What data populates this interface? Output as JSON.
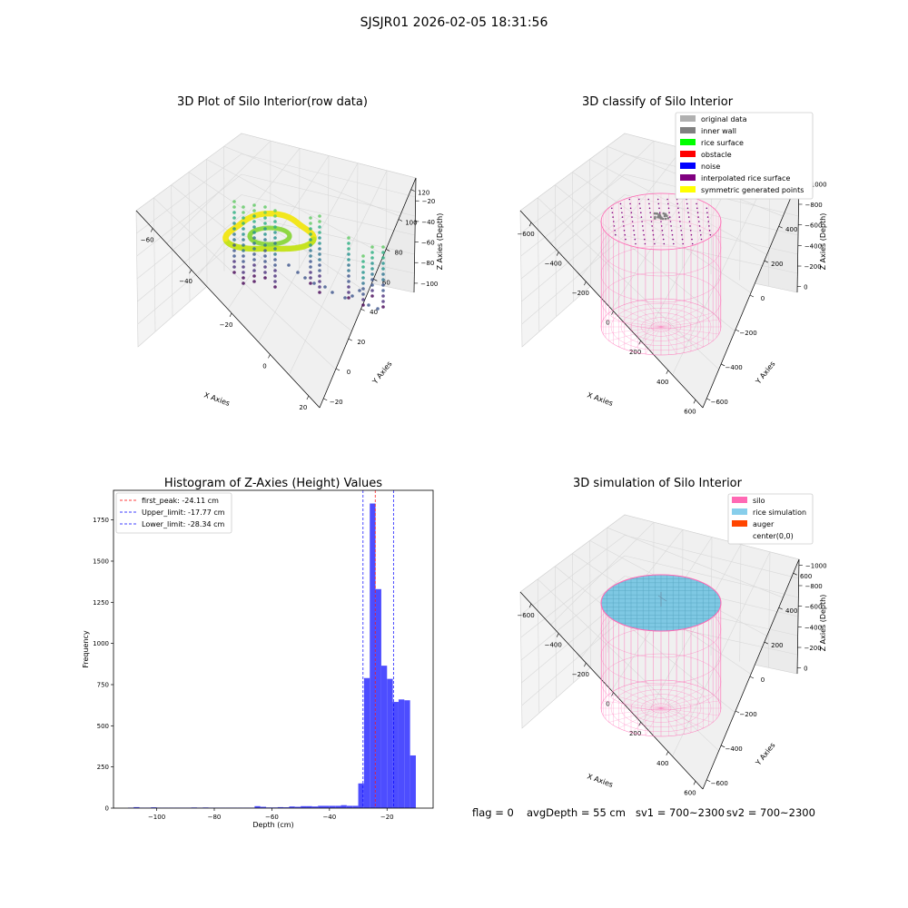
{
  "figure": {
    "suptitle": "SJSJR01 2026-02-05 18:31:56"
  },
  "status": {
    "flag": "flag = 0",
    "avg_depth": "avgDepth = 55 cm",
    "sv1": "sv1 = 700~2300",
    "sv2": "sv2 = 700~2300"
  },
  "chart_data": [
    {
      "type": "scatter",
      "title": "3D Plot of Silo Interior(row data)",
      "xlabel": "X Axies",
      "ylabel": "Y Axies",
      "zlabel": "Z Axies (Depth)",
      "x_ticks": [
        "−60",
        "−40",
        "−20",
        "0",
        "20"
      ],
      "y_ticks": [
        "−20",
        "0",
        "20",
        "40",
        "60",
        "80",
        "100",
        "120"
      ],
      "z_ticks": [
        "−100",
        "−80",
        "−60",
        "−40",
        "−20"
      ],
      "xlim": [
        -70,
        35
      ],
      "ylim": [
        -25,
        130
      ],
      "zlim": [
        -110,
        -15
      ],
      "colormap": "viridis",
      "description_values": {
        "dense_surface_depth_range": [
          -35,
          -20
        ],
        "sparse_columns_depth_range": [
          -110,
          -40
        ]
      }
    },
    {
      "type": "scatter",
      "title": "3D classify of Silo Interior",
      "xlabel": "X Axies",
      "ylabel": "Y Axies",
      "zlabel": "Z Axies (Depth)",
      "x_ticks": [
        "−600",
        "−400",
        "−200",
        "0",
        "200",
        "400",
        "600"
      ],
      "y_ticks": [
        "−600",
        "−400",
        "−200",
        "0",
        "200",
        "400",
        "600"
      ],
      "z_ticks": [
        "−1000",
        "−800",
        "−600",
        "−400",
        "−200",
        "0"
      ],
      "xlim": [
        -650,
        650
      ],
      "ylim": [
        -650,
        650
      ],
      "zlim": [
        -1100,
        50
      ],
      "legend_position": "top-right",
      "legend": [
        {
          "label": "original data",
          "color": "#b0b0b0"
        },
        {
          "label": "inner wall",
          "color": "#808080"
        },
        {
          "label": "rice surface",
          "color": "#00ff00"
        },
        {
          "label": "obstacle",
          "color": "#ff0000"
        },
        {
          "label": "noise",
          "color": "#0000ff"
        },
        {
          "label": "interpolated rice surface",
          "color": "#800080"
        },
        {
          "label": "symmetric generated points",
          "color": "#ffff00"
        }
      ]
    },
    {
      "type": "bar",
      "title": "Histogram of Z-Axies (Height) Values",
      "xlabel": "Depth (cm)",
      "ylabel": "Frequency",
      "xlim": [
        -115,
        -4
      ],
      "ylim": [
        0,
        1930
      ],
      "x_ticks": [
        -100,
        -80,
        -60,
        -40,
        -20
      ],
      "y_ticks": [
        0,
        250,
        500,
        750,
        1000,
        1250,
        1500,
        1750
      ],
      "bar_color": "#4d4dff",
      "bins": [
        {
          "x0": -110,
          "x1": -108,
          "value": 3
        },
        {
          "x0": -108,
          "x1": -106,
          "value": 6
        },
        {
          "x0": -106,
          "x1": -104,
          "value": 3
        },
        {
          "x0": -104,
          "x1": -102,
          "value": 3
        },
        {
          "x0": -102,
          "x1": -100,
          "value": 5
        },
        {
          "x0": -100,
          "x1": -98,
          "value": 3
        },
        {
          "x0": -98,
          "x1": -96,
          "value": 3
        },
        {
          "x0": -96,
          "x1": -94,
          "value": 3
        },
        {
          "x0": -94,
          "x1": -92,
          "value": 3
        },
        {
          "x0": -92,
          "x1": -90,
          "value": 3
        },
        {
          "x0": -90,
          "x1": -88,
          "value": 3
        },
        {
          "x0": -88,
          "x1": -86,
          "value": 4
        },
        {
          "x0": -86,
          "x1": -84,
          "value": 3
        },
        {
          "x0": -84,
          "x1": -82,
          "value": 4
        },
        {
          "x0": -82,
          "x1": -80,
          "value": 3
        },
        {
          "x0": -80,
          "x1": -78,
          "value": 3
        },
        {
          "x0": -78,
          "x1": -76,
          "value": 3
        },
        {
          "x0": -76,
          "x1": -74,
          "value": 3
        },
        {
          "x0": -74,
          "x1": -72,
          "value": 3
        },
        {
          "x0": -72,
          "x1": -70,
          "value": 3
        },
        {
          "x0": -70,
          "x1": -68,
          "value": 3
        },
        {
          "x0": -68,
          "x1": -66,
          "value": 3
        },
        {
          "x0": -66,
          "x1": -64,
          "value": 12
        },
        {
          "x0": -64,
          "x1": -62,
          "value": 8
        },
        {
          "x0": -62,
          "x1": -60,
          "value": 4
        },
        {
          "x0": -60,
          "x1": -58,
          "value": 4
        },
        {
          "x0": -58,
          "x1": -56,
          "value": 6
        },
        {
          "x0": -56,
          "x1": -54,
          "value": 5
        },
        {
          "x0": -54,
          "x1": -52,
          "value": 10
        },
        {
          "x0": -52,
          "x1": -50,
          "value": 8
        },
        {
          "x0": -50,
          "x1": -48,
          "value": 12
        },
        {
          "x0": -48,
          "x1": -46,
          "value": 12
        },
        {
          "x0": -46,
          "x1": -44,
          "value": 10
        },
        {
          "x0": -44,
          "x1": -42,
          "value": 14
        },
        {
          "x0": -42,
          "x1": -40,
          "value": 14
        },
        {
          "x0": -40,
          "x1": -38,
          "value": 14
        },
        {
          "x0": -38,
          "x1": -36,
          "value": 14
        },
        {
          "x0": -36,
          "x1": -34,
          "value": 18
        },
        {
          "x0": -34,
          "x1": -32,
          "value": 14
        },
        {
          "x0": -32,
          "x1": -30,
          "value": 14
        },
        {
          "x0": -30,
          "x1": -28,
          "value": 150
        },
        {
          "x0": -28,
          "x1": -26,
          "value": 790
        },
        {
          "x0": -26,
          "x1": -24,
          "value": 1850
        },
        {
          "x0": -24,
          "x1": -22,
          "value": 1330
        },
        {
          "x0": -22,
          "x1": -20,
          "value": 865
        },
        {
          "x0": -20,
          "x1": -18,
          "value": 785
        },
        {
          "x0": -18,
          "x1": -16,
          "value": 645
        },
        {
          "x0": -16,
          "x1": -14,
          "value": 660
        },
        {
          "x0": -14,
          "x1": -12,
          "value": 655
        },
        {
          "x0": -12,
          "x1": -10,
          "value": 320
        }
      ],
      "lines": [
        {
          "label": "first_peak: -24.11 cm",
          "x": -24.11,
          "color": "#ff0000"
        },
        {
          "label": "Upper_limit: -17.77 cm",
          "x": -17.77,
          "color": "#0000ff"
        },
        {
          "label": "Lower_limit: -28.34 cm",
          "x": -28.34,
          "color": "#0000ff"
        }
      ],
      "legend_position": "top-left"
    },
    {
      "type": "scatter",
      "title": "3D simulation of Silo Interior",
      "xlabel": "X Axies",
      "ylabel": "Y Axies",
      "zlabel": "Z Axies (Depth)",
      "x_ticks": [
        "−600",
        "−400",
        "−200",
        "0",
        "200",
        "400",
        "600"
      ],
      "y_ticks": [
        "−600",
        "−400",
        "−200",
        "0",
        "200",
        "400",
        "600"
      ],
      "z_ticks": [
        "−1000",
        "−800",
        "−600",
        "−400",
        "−200",
        "0"
      ],
      "xlim": [
        -650,
        650
      ],
      "ylim": [
        -650,
        650
      ],
      "zlim": [
        -1100,
        50
      ],
      "legend_position": "top-right",
      "legend": [
        {
          "label": "silo",
          "color": "#ff69b4"
        },
        {
          "label": "rice simulation",
          "color": "#87ceeb"
        },
        {
          "label": "auger",
          "color": "#ff4500"
        },
        {
          "label": "center(0,0)",
          "color": "#ffffff"
        }
      ]
    }
  ]
}
